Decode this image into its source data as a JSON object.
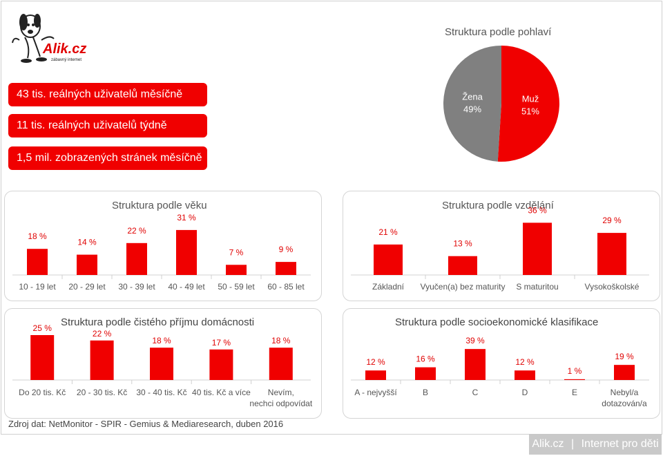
{
  "logo": {
    "name": "Alik.cz",
    "tagline": "zábavný internet",
    "icon": "dog-mascot-icon"
  },
  "stats": [
    "43 tis. reálných uživatelů měsíčně",
    "11 tis. reálných uživatelů týdně",
    "1,5 mil. zobrazených stránek měsíčně"
  ],
  "colors": {
    "accent": "#f00000",
    "neutral": "#808080",
    "brand_bar": "#c9c9c9"
  },
  "chart_data": [
    {
      "type": "pie",
      "title": "Struktura podle pohlaví",
      "slices": [
        {
          "label": "Žena",
          "value": 49,
          "color": "#808080"
        },
        {
          "label": "Muž",
          "value": 51,
          "color": "#f00000"
        }
      ]
    },
    {
      "type": "bar",
      "title": "Struktura podle věku",
      "categories": [
        "10 - 19 let",
        "20 - 29 let",
        "30 - 39 let",
        "40 - 49 let",
        "50 - 59 let",
        "60 - 85 let"
      ],
      "values": [
        18,
        14,
        22,
        31,
        7,
        9
      ],
      "value_labels": [
        "18 %",
        "14 %",
        "22 %",
        "31 %",
        "7 %",
        "9 %"
      ]
    },
    {
      "type": "bar",
      "title": "Struktura podle vzdělání",
      "categories": [
        "Základní",
        "Vyučen(a) bez maturity",
        "S maturitou",
        "Vysokoškolské"
      ],
      "values": [
        21,
        13,
        36,
        29
      ],
      "value_labels": [
        "21 %",
        "13 %",
        "36 %",
        "29 %"
      ]
    },
    {
      "type": "bar",
      "title": "Struktura podle čistého příjmu domácnosti",
      "categories": [
        "Do 20 tis. Kč",
        "20 - 30 tis. Kč",
        "30 - 40 tis. Kč",
        "40 tis. Kč a více",
        "Nevím, nechci odpovídat"
      ],
      "values": [
        25,
        22,
        18,
        17,
        18
      ],
      "value_labels": [
        "25 %",
        "22 %",
        "18 %",
        "17 %",
        "18 %"
      ]
    },
    {
      "type": "bar",
      "title": "Struktura podle socioekonomické klasifikace",
      "categories": [
        "A - nejvyšší",
        "B",
        "C",
        "D",
        "E",
        "Nebyl/a dotazován/a"
      ],
      "values": [
        12,
        16,
        39,
        12,
        1,
        19
      ],
      "value_labels": [
        "12 %",
        "16 %",
        "39 %",
        "12 %",
        "1 %",
        "19 %"
      ]
    }
  ],
  "source": "Zdroj dat: NetMonitor - SPIR - Gemius & Mediaresearch, duben 2016",
  "brand_footer": {
    "left": "Alik.cz",
    "sep": "|",
    "right": "Internet pro děti"
  }
}
